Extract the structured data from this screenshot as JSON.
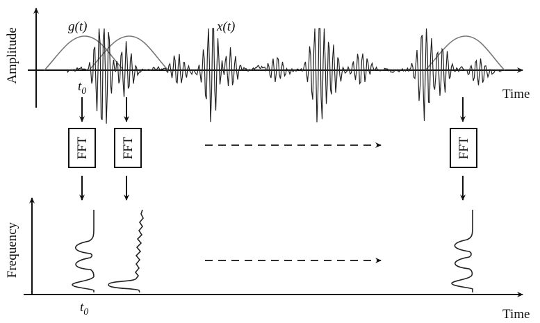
{
  "top_plot": {
    "y_axis_label": "Amplitude",
    "x_axis_label": "Time",
    "window_label": "g(t)",
    "signal_label": "x(t)",
    "t0_label": "t",
    "t0_subscript": "0"
  },
  "fft_blocks": [
    {
      "label": "FFT"
    },
    {
      "label": "FFT"
    },
    {
      "label": "FFT"
    }
  ],
  "bottom_plot": {
    "y_axis_label": "Frequency",
    "x_axis_label": "Time",
    "t0_label": "t",
    "t0_subscript": "0"
  },
  "colors": {
    "ink": "#111111",
    "window_curve": "#777777",
    "background": "#ffffff"
  }
}
